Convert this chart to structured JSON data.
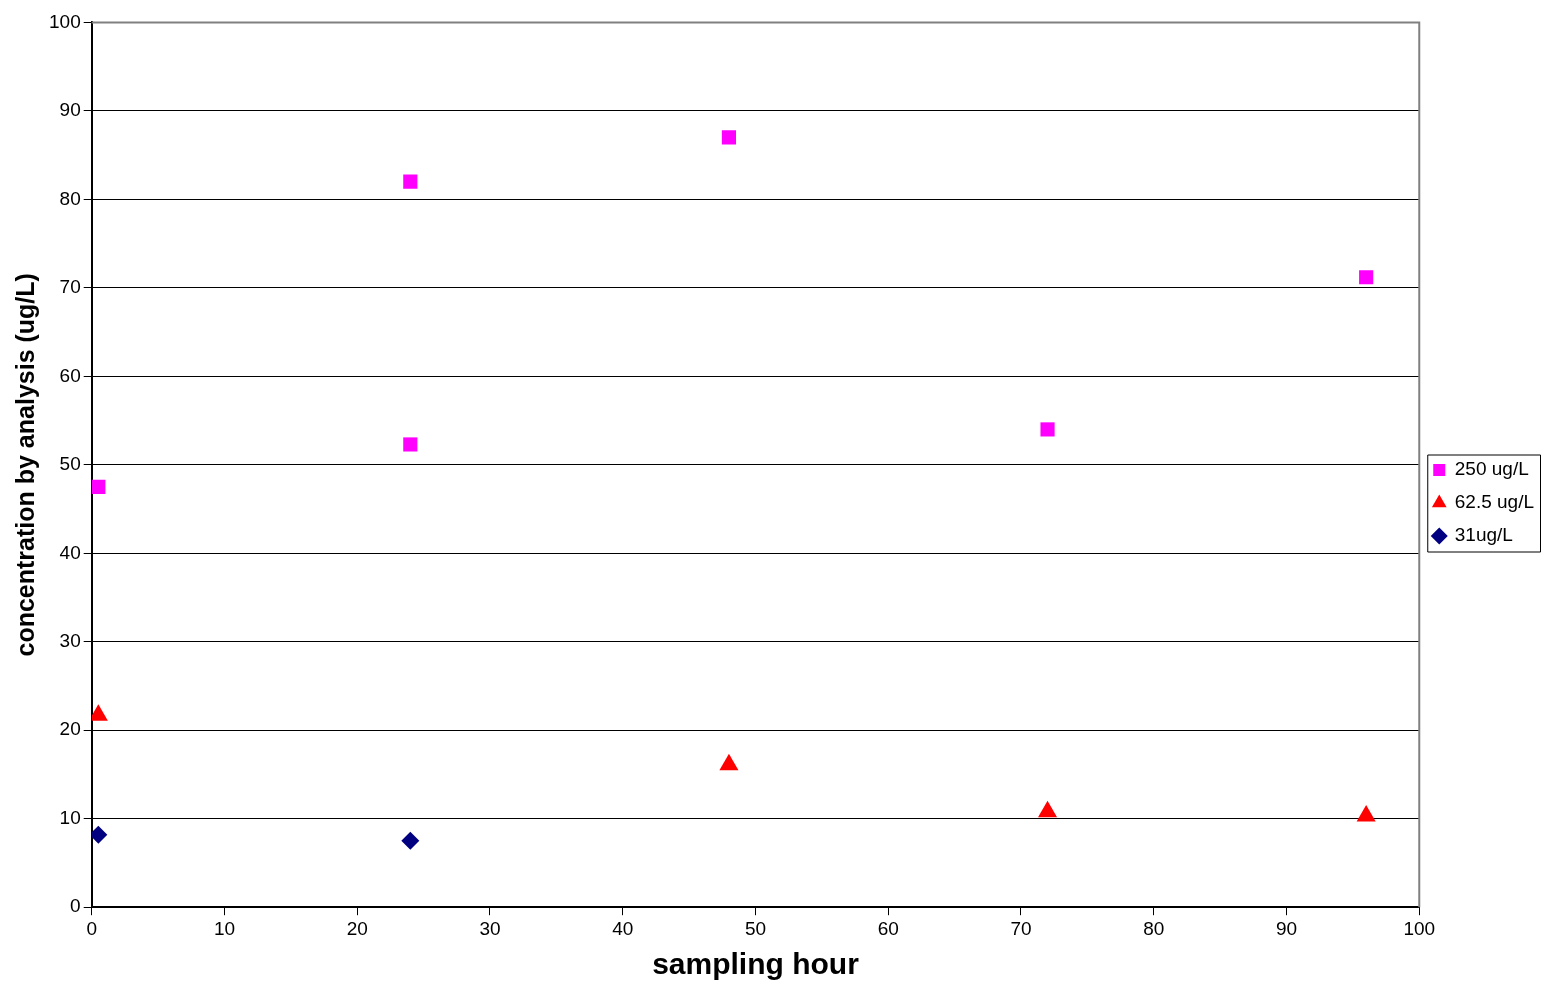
{
  "chart_data": {
    "type": "scatter",
    "xlabel": "sampling hour",
    "ylabel": "concentration by analysis (ug/L)",
    "xlim": [
      0,
      100
    ],
    "xticks": [
      0,
      10,
      20,
      30,
      40,
      50,
      60,
      70,
      80,
      90,
      100
    ],
    "ylim": [
      0,
      100
    ],
    "yticks": [
      0,
      10,
      20,
      30,
      40,
      50,
      60,
      70,
      80,
      90,
      100
    ],
    "grid": "y",
    "legend": "right",
    "series": [
      {
        "name": "250 ug/L",
        "color": "#ff00ff",
        "marker": "square",
        "x": [
          0.5,
          24,
          24,
          48,
          72,
          96
        ],
        "values": [
          47.5,
          82,
          52.3,
          87,
          54,
          71.2
        ]
      },
      {
        "name": "62.5 ug/L",
        "color": "#ff0000",
        "marker": "triangle",
        "x": [
          0.5,
          48,
          72,
          96
        ],
        "values": [
          21.7,
          16.1,
          10.8,
          10.3
        ]
      },
      {
        "name": "31ug/L",
        "color": "#000080",
        "marker": "diamond",
        "x": [
          0.5,
          24
        ],
        "values": [
          8.2,
          7.5
        ]
      }
    ]
  }
}
